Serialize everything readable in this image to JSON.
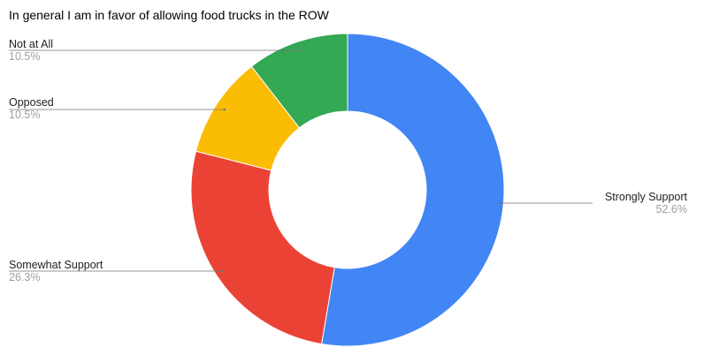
{
  "chart_data": {
    "type": "pie",
    "variant": "donut",
    "title": "In general I am in favor of allowing food trucks in the ROW",
    "slices": [
      {
        "label": "Strongly Support",
        "value": 52.6,
        "percent_label": "52.6%",
        "color": "#4285f4",
        "label_side": "right"
      },
      {
        "label": "Somewhat Support",
        "value": 26.3,
        "percent_label": "26.3%",
        "color": "#ea4335",
        "label_side": "left"
      },
      {
        "label": "Opposed",
        "value": 10.5,
        "percent_label": "10.5%",
        "color": "#fbbc04",
        "label_side": "left"
      },
      {
        "label": "Not at All",
        "value": 10.5,
        "percent_label": "10.5%",
        "color": "#34a853",
        "label_side": "left"
      }
    ],
    "start_angle": "12 o'clock",
    "direction": "clockwise",
    "legend": "none"
  }
}
